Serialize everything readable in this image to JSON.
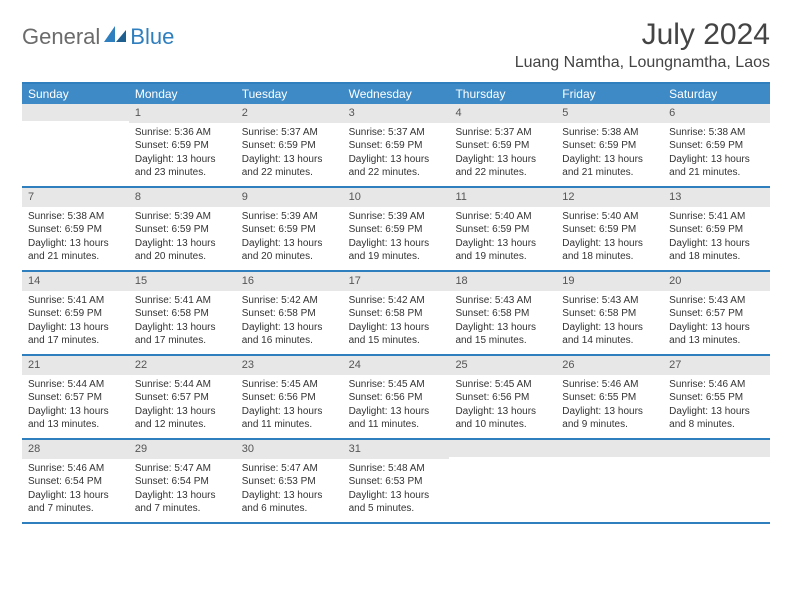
{
  "logo": {
    "text1": "General",
    "text2": "Blue"
  },
  "title": "July 2024",
  "location": "Luang Namtha, Loungnamtha, Laos",
  "colors": {
    "header_bg": "#3d8ac7",
    "border": "#2f7fbf",
    "daynum_bg": "#e7e7e7",
    "text": "#333333",
    "logo_gray": "#6b6b6b",
    "logo_blue": "#2f7fbf"
  },
  "day_names": [
    "Sunday",
    "Monday",
    "Tuesday",
    "Wednesday",
    "Thursday",
    "Friday",
    "Saturday"
  ],
  "weeks": [
    [
      {
        "n": "",
        "sr": "",
        "ss": "",
        "dl": ""
      },
      {
        "n": "1",
        "sr": "Sunrise: 5:36 AM",
        "ss": "Sunset: 6:59 PM",
        "dl": "Daylight: 13 hours and 23 minutes."
      },
      {
        "n": "2",
        "sr": "Sunrise: 5:37 AM",
        "ss": "Sunset: 6:59 PM",
        "dl": "Daylight: 13 hours and 22 minutes."
      },
      {
        "n": "3",
        "sr": "Sunrise: 5:37 AM",
        "ss": "Sunset: 6:59 PM",
        "dl": "Daylight: 13 hours and 22 minutes."
      },
      {
        "n": "4",
        "sr": "Sunrise: 5:37 AM",
        "ss": "Sunset: 6:59 PM",
        "dl": "Daylight: 13 hours and 22 minutes."
      },
      {
        "n": "5",
        "sr": "Sunrise: 5:38 AM",
        "ss": "Sunset: 6:59 PM",
        "dl": "Daylight: 13 hours and 21 minutes."
      },
      {
        "n": "6",
        "sr": "Sunrise: 5:38 AM",
        "ss": "Sunset: 6:59 PM",
        "dl": "Daylight: 13 hours and 21 minutes."
      }
    ],
    [
      {
        "n": "7",
        "sr": "Sunrise: 5:38 AM",
        "ss": "Sunset: 6:59 PM",
        "dl": "Daylight: 13 hours and 21 minutes."
      },
      {
        "n": "8",
        "sr": "Sunrise: 5:39 AM",
        "ss": "Sunset: 6:59 PM",
        "dl": "Daylight: 13 hours and 20 minutes."
      },
      {
        "n": "9",
        "sr": "Sunrise: 5:39 AM",
        "ss": "Sunset: 6:59 PM",
        "dl": "Daylight: 13 hours and 20 minutes."
      },
      {
        "n": "10",
        "sr": "Sunrise: 5:39 AM",
        "ss": "Sunset: 6:59 PM",
        "dl": "Daylight: 13 hours and 19 minutes."
      },
      {
        "n": "11",
        "sr": "Sunrise: 5:40 AM",
        "ss": "Sunset: 6:59 PM",
        "dl": "Daylight: 13 hours and 19 minutes."
      },
      {
        "n": "12",
        "sr": "Sunrise: 5:40 AM",
        "ss": "Sunset: 6:59 PM",
        "dl": "Daylight: 13 hours and 18 minutes."
      },
      {
        "n": "13",
        "sr": "Sunrise: 5:41 AM",
        "ss": "Sunset: 6:59 PM",
        "dl": "Daylight: 13 hours and 18 minutes."
      }
    ],
    [
      {
        "n": "14",
        "sr": "Sunrise: 5:41 AM",
        "ss": "Sunset: 6:59 PM",
        "dl": "Daylight: 13 hours and 17 minutes."
      },
      {
        "n": "15",
        "sr": "Sunrise: 5:41 AM",
        "ss": "Sunset: 6:58 PM",
        "dl": "Daylight: 13 hours and 17 minutes."
      },
      {
        "n": "16",
        "sr": "Sunrise: 5:42 AM",
        "ss": "Sunset: 6:58 PM",
        "dl": "Daylight: 13 hours and 16 minutes."
      },
      {
        "n": "17",
        "sr": "Sunrise: 5:42 AM",
        "ss": "Sunset: 6:58 PM",
        "dl": "Daylight: 13 hours and 15 minutes."
      },
      {
        "n": "18",
        "sr": "Sunrise: 5:43 AM",
        "ss": "Sunset: 6:58 PM",
        "dl": "Daylight: 13 hours and 15 minutes."
      },
      {
        "n": "19",
        "sr": "Sunrise: 5:43 AM",
        "ss": "Sunset: 6:58 PM",
        "dl": "Daylight: 13 hours and 14 minutes."
      },
      {
        "n": "20",
        "sr": "Sunrise: 5:43 AM",
        "ss": "Sunset: 6:57 PM",
        "dl": "Daylight: 13 hours and 13 minutes."
      }
    ],
    [
      {
        "n": "21",
        "sr": "Sunrise: 5:44 AM",
        "ss": "Sunset: 6:57 PM",
        "dl": "Daylight: 13 hours and 13 minutes."
      },
      {
        "n": "22",
        "sr": "Sunrise: 5:44 AM",
        "ss": "Sunset: 6:57 PM",
        "dl": "Daylight: 13 hours and 12 minutes."
      },
      {
        "n": "23",
        "sr": "Sunrise: 5:45 AM",
        "ss": "Sunset: 6:56 PM",
        "dl": "Daylight: 13 hours and 11 minutes."
      },
      {
        "n": "24",
        "sr": "Sunrise: 5:45 AM",
        "ss": "Sunset: 6:56 PM",
        "dl": "Daylight: 13 hours and 11 minutes."
      },
      {
        "n": "25",
        "sr": "Sunrise: 5:45 AM",
        "ss": "Sunset: 6:56 PM",
        "dl": "Daylight: 13 hours and 10 minutes."
      },
      {
        "n": "26",
        "sr": "Sunrise: 5:46 AM",
        "ss": "Sunset: 6:55 PM",
        "dl": "Daylight: 13 hours and 9 minutes."
      },
      {
        "n": "27",
        "sr": "Sunrise: 5:46 AM",
        "ss": "Sunset: 6:55 PM",
        "dl": "Daylight: 13 hours and 8 minutes."
      }
    ],
    [
      {
        "n": "28",
        "sr": "Sunrise: 5:46 AM",
        "ss": "Sunset: 6:54 PM",
        "dl": "Daylight: 13 hours and 7 minutes."
      },
      {
        "n": "29",
        "sr": "Sunrise: 5:47 AM",
        "ss": "Sunset: 6:54 PM",
        "dl": "Daylight: 13 hours and 7 minutes."
      },
      {
        "n": "30",
        "sr": "Sunrise: 5:47 AM",
        "ss": "Sunset: 6:53 PM",
        "dl": "Daylight: 13 hours and 6 minutes."
      },
      {
        "n": "31",
        "sr": "Sunrise: 5:48 AM",
        "ss": "Sunset: 6:53 PM",
        "dl": "Daylight: 13 hours and 5 minutes."
      },
      {
        "n": "",
        "sr": "",
        "ss": "",
        "dl": ""
      },
      {
        "n": "",
        "sr": "",
        "ss": "",
        "dl": ""
      },
      {
        "n": "",
        "sr": "",
        "ss": "",
        "dl": ""
      }
    ]
  ]
}
